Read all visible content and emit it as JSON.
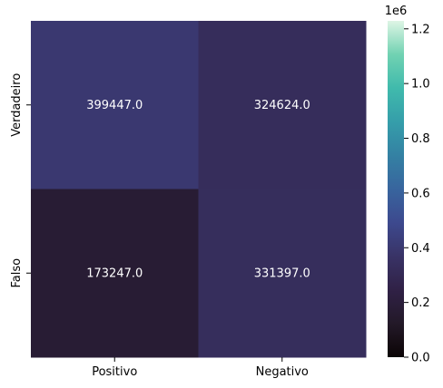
{
  "chart_data": {
    "type": "heatmap",
    "x_categories": [
      "Positivo",
      "Negativo"
    ],
    "y_categories": [
      "Verdadeiro",
      "Falso"
    ],
    "values": [
      [
        399447.0,
        324624.0
      ],
      [
        173247.0,
        331397.0
      ]
    ],
    "cell_labels": [
      [
        "399447.0",
        "324624.0"
      ],
      [
        "173247.0",
        "331397.0"
      ]
    ],
    "colormap": "mako",
    "color_range": [
      0,
      1229136
    ],
    "colorbar_ticks": [
      0.0,
      0.2,
      0.4,
      0.6,
      0.8,
      1.0,
      1.2
    ],
    "colorbar_tick_labels": [
      "0.0",
      "0.2",
      "0.4",
      "0.6",
      "0.8",
      "1.0",
      "1.2"
    ],
    "colorbar_multiplier": "1e6",
    "title": "",
    "xlabel": "",
    "ylabel": ""
  }
}
